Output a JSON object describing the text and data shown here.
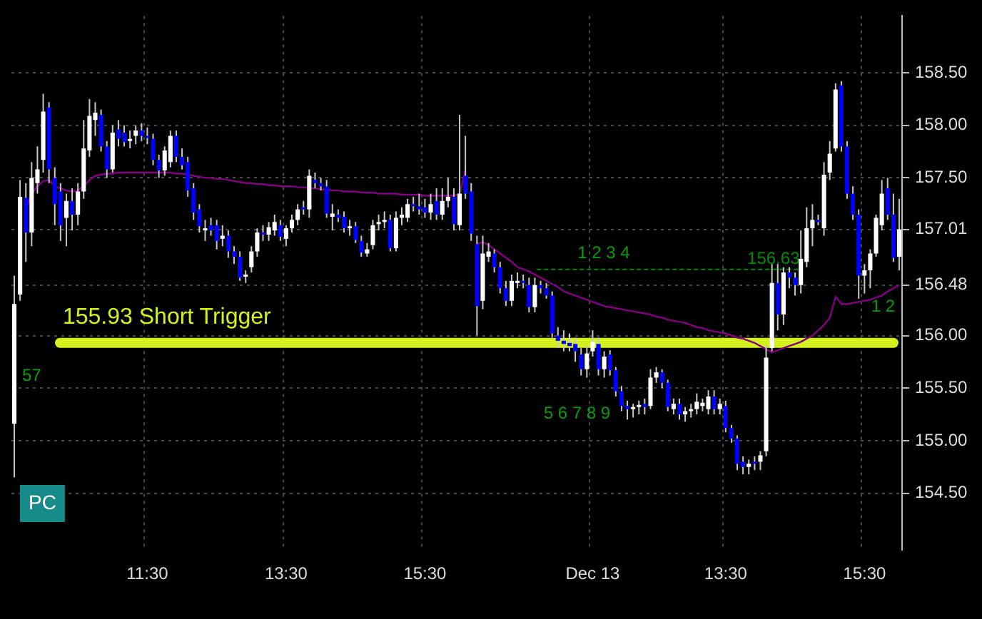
{
  "chart_data": {
    "type": "candlestick",
    "categories": [
      null,
      null,
      null,
      null,
      null,
      null,
      null,
      null,
      null,
      null,
      null,
      null,
      null,
      null,
      null,
      null,
      null,
      null,
      null,
      null,
      null,
      null,
      null,
      "11:30",
      null,
      null,
      null,
      null,
      null,
      null,
      null,
      null,
      null,
      null,
      null,
      null,
      null,
      null,
      null,
      null,
      null,
      null,
      null,
      null,
      null,
      null,
      null,
      "13:30",
      null,
      null,
      null,
      null,
      null,
      null,
      null,
      null,
      null,
      null,
      null,
      null,
      null,
      null,
      null,
      null,
      null,
      null,
      null,
      null,
      null,
      null,
      null,
      "15:30",
      null,
      null,
      null,
      null,
      null,
      null,
      null,
      null,
      null,
      null,
      null,
      null,
      null,
      null,
      null,
      null,
      null,
      null,
      null,
      null,
      null,
      null,
      null,
      null,
      null,
      null,
      null,
      null,
      "Dec 13",
      null,
      null,
      null,
      null,
      null,
      null,
      null,
      null,
      null,
      null,
      null,
      null,
      null,
      null,
      null,
      null,
      null,
      null,
      null,
      null,
      null,
      null,
      "13:30",
      null,
      null,
      null,
      null,
      null,
      null,
      null,
      null,
      null,
      null,
      null,
      null,
      null,
      null,
      null,
      null,
      null,
      null,
      null,
      null,
      null,
      null,
      null,
      "15:30",
      null,
      null,
      null,
      null,
      null,
      null
    ],
    "ohlc": [
      [
        155.16,
        156.57,
        154.65,
        156.3
      ],
      [
        156.39,
        157.48,
        156.33,
        157.32
      ],
      [
        157.31,
        157.45,
        156.7,
        156.98
      ],
      [
        156.98,
        157.65,
        156.85,
        157.5
      ],
      [
        157.45,
        157.8,
        157.35,
        157.58
      ],
      [
        157.67,
        158.3,
        157.55,
        158.13
      ],
      [
        158.17,
        158.22,
        157.45,
        157.58
      ],
      [
        157.5,
        157.6,
        157.05,
        157.25
      ],
      [
        157.37,
        157.45,
        156.9,
        157.05
      ],
      [
        157.12,
        157.35,
        156.85,
        157.28
      ],
      [
        157.28,
        157.4,
        157.0,
        157.15
      ],
      [
        157.15,
        157.45,
        157.05,
        157.37
      ],
      [
        157.37,
        158.05,
        157.3,
        157.78
      ],
      [
        157.76,
        158.25,
        157.7,
        158.09
      ],
      [
        158.05,
        158.22,
        157.9,
        158.12
      ],
      [
        158.1,
        158.15,
        157.75,
        157.8
      ],
      [
        157.8,
        157.85,
        157.5,
        157.58
      ],
      [
        157.58,
        158.0,
        157.55,
        157.93
      ],
      [
        157.96,
        158.05,
        157.8,
        157.87
      ],
      [
        157.93,
        158.0,
        157.8,
        157.84
      ],
      [
        157.85,
        157.95,
        157.78,
        157.87
      ],
      [
        157.9,
        158.0,
        157.82,
        157.95
      ],
      [
        157.95,
        158.02,
        157.85,
        157.9
      ],
      [
        157.9,
        157.98,
        157.82,
        157.88
      ],
      [
        157.87,
        157.92,
        157.62,
        157.67
      ],
      [
        157.67,
        157.72,
        157.5,
        157.57
      ],
      [
        157.57,
        157.8,
        157.52,
        157.76
      ],
      [
        157.65,
        157.95,
        157.6,
        157.9
      ],
      [
        157.9,
        157.95,
        157.65,
        157.7
      ],
      [
        157.7,
        157.78,
        157.58,
        157.62
      ],
      [
        157.65,
        157.7,
        157.32,
        157.38
      ],
      [
        157.4,
        157.45,
        157.1,
        157.17
      ],
      [
        157.2,
        157.25,
        156.98,
        157.04
      ],
      [
        157.0,
        157.1,
        156.9,
        157.02
      ],
      [
        157.05,
        157.12,
        156.95,
        157.0
      ],
      [
        157.05,
        157.1,
        156.82,
        156.9
      ],
      [
        156.92,
        157.05,
        156.85,
        156.95
      ],
      [
        156.95,
        157.0,
        156.74,
        156.8
      ],
      [
        156.8,
        156.85,
        156.68,
        156.75
      ],
      [
        156.75,
        156.8,
        156.52,
        156.55
      ],
      [
        156.56,
        156.62,
        156.5,
        156.58
      ],
      [
        156.65,
        156.85,
        156.6,
        156.8
      ],
      [
        156.8,
        157.02,
        156.75,
        156.98
      ],
      [
        156.98,
        157.05,
        156.9,
        156.96
      ],
      [
        156.96,
        157.08,
        156.9,
        157.03
      ],
      [
        157.0,
        157.15,
        156.95,
        157.08
      ],
      [
        157.05,
        157.1,
        156.9,
        156.94
      ],
      [
        156.92,
        157.05,
        156.85,
        157.02
      ],
      [
        157.02,
        157.15,
        156.98,
        157.1
      ],
      [
        157.1,
        157.25,
        157.05,
        157.2
      ],
      [
        157.22,
        157.28,
        157.15,
        157.2
      ],
      [
        157.2,
        157.58,
        157.12,
        157.52
      ],
      [
        157.48,
        157.55,
        157.4,
        157.45
      ],
      [
        157.45,
        157.5,
        157.38,
        157.42
      ],
      [
        157.42,
        157.48,
        157.12,
        157.16
      ],
      [
        157.13,
        157.25,
        157.0,
        157.16
      ],
      [
        157.15,
        157.2,
        157.08,
        157.12
      ],
      [
        157.13,
        157.18,
        156.98,
        157.02
      ],
      [
        157.02,
        157.1,
        156.95,
        157.04
      ],
      [
        157.04,
        157.08,
        156.88,
        156.91
      ],
      [
        156.9,
        156.95,
        156.75,
        156.79
      ],
      [
        156.78,
        156.88,
        156.75,
        156.82
      ],
      [
        156.86,
        157.1,
        156.82,
        157.05
      ],
      [
        157.06,
        157.15,
        157.0,
        157.08
      ],
      [
        157.08,
        157.18,
        157.02,
        157.1
      ],
      [
        157.1,
        157.15,
        156.8,
        156.83
      ],
      [
        156.83,
        157.18,
        156.8,
        157.12
      ],
      [
        157.12,
        157.22,
        157.05,
        157.15
      ],
      [
        157.12,
        157.3,
        157.08,
        157.25
      ],
      [
        157.25,
        157.32,
        157.18,
        157.23
      ],
      [
        157.23,
        157.35,
        157.15,
        157.2
      ],
      [
        157.22,
        157.3,
        157.12,
        157.17
      ],
      [
        157.17,
        157.35,
        157.1,
        157.25
      ],
      [
        157.28,
        157.4,
        157.1,
        157.15
      ],
      [
        157.15,
        157.4,
        157.1,
        157.28
      ],
      [
        157.28,
        157.5,
        157.22,
        157.32
      ],
      [
        157.32,
        157.4,
        157.0,
        157.06
      ],
      [
        157.05,
        158.1,
        157.0,
        157.35
      ],
      [
        157.52,
        157.9,
        157.3,
        157.35
      ],
      [
        157.37,
        157.45,
        156.9,
        156.97
      ],
      [
        156.87,
        156.95,
        156.0,
        156.28
      ],
      [
        156.33,
        156.95,
        156.25,
        156.78
      ],
      [
        156.75,
        156.88,
        156.7,
        156.8
      ],
      [
        156.78,
        156.82,
        156.6,
        156.65
      ],
      [
        156.65,
        156.7,
        156.4,
        156.45
      ],
      [
        156.45,
        156.52,
        156.28,
        156.33
      ],
      [
        156.33,
        156.58,
        156.28,
        156.52
      ],
      [
        156.5,
        156.6,
        156.45,
        156.52
      ],
      [
        156.52,
        156.58,
        156.45,
        156.5
      ],
      [
        156.48,
        156.55,
        156.22,
        156.27
      ],
      [
        156.27,
        156.55,
        156.22,
        156.48
      ],
      [
        156.48,
        156.52,
        156.4,
        156.45
      ],
      [
        156.45,
        156.5,
        156.35,
        156.38
      ],
      [
        156.38,
        156.42,
        155.98,
        156.02
      ],
      [
        156.0,
        156.08,
        155.88,
        155.95
      ],
      [
        155.95,
        156.05,
        155.85,
        155.92
      ],
      [
        155.93,
        156.02,
        155.85,
        155.9
      ],
      [
        155.92,
        155.98,
        155.75,
        155.85
      ],
      [
        155.82,
        155.88,
        155.62,
        155.68
      ],
      [
        155.68,
        155.9,
        155.6,
        155.83
      ],
      [
        155.85,
        156.05,
        155.8,
        155.94
      ],
      [
        155.92,
        155.98,
        155.62,
        155.68
      ],
      [
        155.68,
        155.85,
        155.6,
        155.8
      ],
      [
        155.82,
        155.86,
        155.62,
        155.67
      ],
      [
        155.67,
        155.7,
        155.42,
        155.47
      ],
      [
        155.47,
        155.52,
        155.28,
        155.33
      ],
      [
        155.33,
        155.38,
        155.2,
        155.3
      ],
      [
        155.3,
        155.35,
        155.22,
        155.32
      ],
      [
        155.32,
        155.38,
        155.25,
        155.34
      ],
      [
        155.35,
        155.4,
        155.25,
        155.32
      ],
      [
        155.33,
        155.68,
        155.3,
        155.6
      ],
      [
        155.6,
        155.7,
        155.55,
        155.65
      ],
      [
        155.65,
        155.68,
        155.5,
        155.55
      ],
      [
        155.55,
        155.58,
        155.28,
        155.32
      ],
      [
        155.3,
        155.4,
        155.25,
        155.35
      ],
      [
        155.35,
        155.4,
        155.2,
        155.25
      ],
      [
        155.25,
        155.32,
        155.18,
        155.28
      ],
      [
        155.28,
        155.35,
        155.22,
        155.3
      ],
      [
        155.3,
        155.45,
        155.25,
        155.37
      ],
      [
        155.33,
        155.4,
        155.28,
        155.36
      ],
      [
        155.3,
        155.48,
        155.25,
        155.42
      ],
      [
        155.42,
        155.48,
        155.25,
        155.3
      ],
      [
        155.3,
        155.4,
        155.25,
        155.35
      ],
      [
        155.33,
        155.38,
        155.08,
        155.12
      ],
      [
        155.12,
        155.15,
        154.98,
        155.02
      ],
      [
        155.02,
        155.05,
        154.72,
        154.78
      ],
      [
        154.8,
        154.85,
        154.68,
        154.75
      ],
      [
        154.75,
        154.82,
        154.68,
        154.78
      ],
      [
        154.8,
        154.85,
        154.72,
        154.78
      ],
      [
        154.8,
        154.9,
        154.72,
        154.86
      ],
      [
        154.9,
        155.91,
        154.85,
        155.79
      ],
      [
        155.88,
        156.68,
        155.85,
        156.5
      ],
      [
        156.5,
        156.68,
        156.05,
        156.2
      ],
      [
        156.2,
        156.65,
        156.1,
        156.6
      ],
      [
        156.6,
        156.65,
        156.45,
        156.55
      ],
      [
        156.55,
        156.6,
        156.38,
        156.48
      ],
      [
        156.48,
        157.0,
        156.4,
        156.73
      ],
      [
        156.7,
        157.22,
        156.65,
        157.02
      ],
      [
        157.02,
        157.25,
        156.85,
        157.1
      ],
      [
        157.1,
        157.15,
        157.05,
        157.08
      ],
      [
        157.02,
        157.65,
        156.95,
        157.53
      ],
      [
        157.55,
        157.85,
        157.48,
        157.73
      ],
      [
        157.78,
        158.4,
        157.75,
        158.34
      ],
      [
        158.38,
        158.42,
        157.75,
        157.8
      ],
      [
        157.8,
        157.85,
        157.3,
        157.35
      ],
      [
        157.35,
        157.42,
        157.1,
        157.15
      ],
      [
        157.15,
        157.2,
        156.35,
        156.57
      ],
      [
        156.57,
        156.68,
        156.4,
        156.62
      ],
      [
        156.62,
        156.82,
        156.45,
        156.78
      ],
      [
        156.78,
        157.15,
        156.75,
        157.12
      ],
      [
        157.05,
        157.48,
        157.0,
        157.35
      ],
      [
        157.4,
        157.5,
        157.1,
        157.15
      ],
      [
        157.15,
        157.35,
        156.7,
        156.74
      ],
      [
        156.75,
        157.3,
        156.62,
        157.01
      ]
    ],
    "colors": [
      "#ffffff",
      "#ffffff",
      "#0000ff",
      "#ffffff",
      "#ffffff",
      "#ffffff",
      "#0000ff",
      "#0000ff",
      "#0000ff",
      "#ffffff",
      "#0000ff",
      "#ffffff",
      "#ffffff",
      "#ffffff",
      "#ffffff",
      "#0000ff",
      "#0000ff",
      "#ffffff",
      "#0000ff",
      "#0000ff",
      "#ffffff",
      "#ffffff",
      "#0000ff",
      "#0000ff",
      "#0000ff",
      "#0000ff",
      "#ffffff",
      "#ffffff",
      "#0000ff",
      "#0000ff",
      "#0000ff",
      "#0000ff",
      "#0000ff",
      "#ffffff",
      "#0000ff",
      "#0000ff",
      "#ffffff",
      "#0000ff",
      "#0000ff",
      "#0000ff",
      "#ffffff",
      "#ffffff",
      "#ffffff",
      "#0000ff",
      "#ffffff",
      "#ffffff",
      "#0000ff",
      "#ffffff",
      "#ffffff",
      "#ffffff",
      "#0000ff",
      "#ffffff",
      "#0000ff",
      "#0000ff",
      "#0000ff",
      "#ffffff",
      "#0000ff",
      "#0000ff",
      "#ffffff",
      "#0000ff",
      "#0000ff",
      "#ffffff",
      "#ffffff",
      "#ffffff",
      "#ffffff",
      "#0000ff",
      "#ffffff",
      "#ffffff",
      "#ffffff",
      "#0000ff",
      "#0000ff",
      "#0000ff",
      "#ffffff",
      "#0000ff",
      "#ffffff",
      "#ffffff",
      "#0000ff",
      "#ffffff",
      "#0000ff",
      "#0000ff",
      "#0000ff",
      "#ffffff",
      "#ffffff",
      "#0000ff",
      "#0000ff",
      "#0000ff",
      "#ffffff",
      "#ffffff",
      "#0000ff",
      "#0000ff",
      "#ffffff",
      "#0000ff",
      "#0000ff",
      "#0000ff",
      "#0000ff",
      "#0000ff",
      "#0000ff",
      "#0000ff",
      "#0000ff",
      "#ffffff",
      "#ffffff",
      "#0000ff",
      "#ffffff",
      "#0000ff",
      "#0000ff",
      "#0000ff",
      "#0000ff",
      "#ffffff",
      "#ffffff",
      "#0000ff",
      "#ffffff",
      "#ffffff",
      "#0000ff",
      "#0000ff",
      "#ffffff",
      "#0000ff",
      "#ffffff",
      "#ffffff",
      "#ffffff",
      "#ffffff",
      "#ffffff",
      "#0000ff",
      "#ffffff",
      "#0000ff",
      "#0000ff",
      "#0000ff",
      "#0000ff",
      "#ffffff",
      "#0000ff",
      "#ffffff",
      "#ffffff",
      "#ffffff",
      "#0000ff",
      "#ffffff",
      "#0000ff",
      "#0000ff",
      "#ffffff",
      "#ffffff",
      "#ffffff",
      "#0000ff",
      "#ffffff",
      "#ffffff",
      "#ffffff",
      "#0000ff",
      "#0000ff",
      "#0000ff",
      "#0000ff",
      "#ffffff",
      "#ffffff",
      "#ffffff",
      "#ffffff",
      "#0000ff",
      "#0000ff",
      "#ffffff"
    ],
    "series": [
      {
        "type": "line",
        "color": "#800080",
        "values": [
          null,
          null,
          157.2,
          157.35,
          157.42,
          157.47,
          157.48,
          157.42,
          157.4,
          157.38,
          157.37,
          157.38,
          157.42,
          157.48,
          157.52,
          157.53,
          157.54,
          157.54,
          157.55,
          157.55,
          157.55,
          157.55,
          157.55,
          157.55,
          157.55,
          157.55,
          157.55,
          157.55,
          157.54,
          157.54,
          157.53,
          157.52,
          157.51,
          157.5,
          157.5,
          157.49,
          157.49,
          157.48,
          157.47,
          157.46,
          157.45,
          157.45,
          157.44,
          157.44,
          157.43,
          157.43,
          157.42,
          157.42,
          157.42,
          157.41,
          157.41,
          157.4,
          157.4,
          157.39,
          157.39,
          157.38,
          157.38,
          157.37,
          157.37,
          157.37,
          157.36,
          157.36,
          157.36,
          157.35,
          157.35,
          157.35,
          157.35,
          157.34,
          157.34,
          157.34,
          157.34,
          157.33,
          157.33,
          157.33,
          157.33,
          157.33,
          157.33,
          157.35,
          157.57,
          null,
          156.87,
          156.89,
          156.86,
          156.82,
          156.78,
          156.74,
          156.7,
          156.65,
          156.63,
          156.61,
          156.58,
          156.55,
          156.52,
          156.49,
          156.46,
          156.42,
          156.4,
          156.38,
          156.36,
          156.34,
          156.32,
          156.3,
          156.28,
          156.27,
          156.26,
          156.25,
          156.24,
          156.23,
          156.22,
          156.21,
          156.2,
          156.18,
          156.17,
          156.15,
          156.14,
          156.13,
          156.12,
          156.1,
          156.08,
          156.07,
          156.05,
          156.04,
          156.03,
          156.02,
          156.0,
          155.98,
          155.97,
          155.95,
          155.93,
          155.9,
          155.87,
          155.84,
          155.86,
          155.88,
          155.9,
          155.92,
          155.94,
          155.97,
          156.0,
          156.05,
          156.1,
          156.17,
          156.37,
          156.3,
          156.3,
          156.31,
          156.32,
          156.33,
          156.34,
          156.36,
          156.38,
          156.42,
          156.45,
          156.48
        ]
      }
    ],
    "ylim": [
      153.96,
      159.04
    ],
    "yticks": [
      {
        "value": 154.5,
        "label": "154.50"
      },
      {
        "value": 155,
        "label": "155.00"
      },
      {
        "value": 155.5,
        "label": "155.50"
      },
      {
        "value": 156,
        "label": "156.00"
      },
      {
        "value": 156.48,
        "label": "156.48"
      },
      {
        "value": 157.01,
        "label": "157.01"
      },
      {
        "value": 157.5,
        "label": "157.50"
      },
      {
        "value": 158,
        "label": "158.00"
      },
      {
        "value": 158.5,
        "label": "158.50"
      }
    ],
    "grid": true,
    "legend": false,
    "ref_lines": [
      {
        "axis": "y",
        "value": 155.93,
        "label": "155.93 Short Trigger",
        "color": "#d4f01e",
        "line_style": "solid"
      },
      {
        "axis": "y",
        "value": 156.63,
        "label": "156.63",
        "color": "#008c00",
        "line_style": "dashed"
      }
    ],
    "annotations": [
      "57",
      "1 2 3 4",
      "5 6 7 8 9",
      "1 2",
      "PC"
    ]
  }
}
